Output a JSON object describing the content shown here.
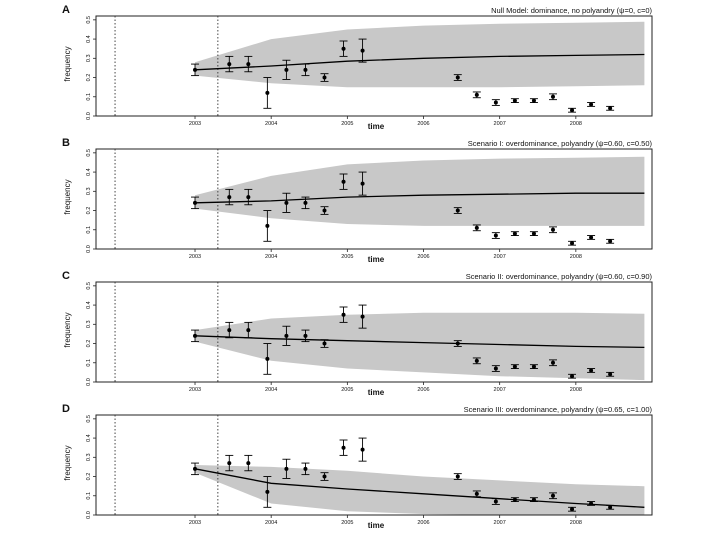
{
  "panels": [
    {
      "letter": "A",
      "title": "Null Model: dominance, no polyandry (ψ=0, c=0)",
      "xlabel": "time",
      "ylabel": "frequency",
      "xticks": [
        "2003",
        "2004",
        "2005",
        "2006",
        "2007",
        "2008"
      ],
      "yticks": [
        "0.0",
        "0.1",
        "0.2",
        "0.3",
        "0.4",
        "0.5"
      ]
    },
    {
      "letter": "B",
      "title": "Scenario I: overdominance, polyandry (ψ=0.60, c=0.50)",
      "xlabel": "time",
      "ylabel": "frequency",
      "xticks": [
        "2003",
        "2004",
        "2005",
        "2006",
        "2007",
        "2008"
      ],
      "yticks": [
        "0.0",
        "0.1",
        "0.2",
        "0.3",
        "0.4",
        "0.5"
      ]
    },
    {
      "letter": "C",
      "title": "Scenario II: overdominance, polyandry (ψ=0.60, c=0.90)",
      "xlabel": "time",
      "ylabel": "frequency",
      "xticks": [
        "2003",
        "2004",
        "2005",
        "2006",
        "2007",
        "2008"
      ],
      "yticks": [
        "0.0",
        "0.1",
        "0.2",
        "0.3",
        "0.4",
        "0.5"
      ]
    },
    {
      "letter": "D",
      "title": "Scenario III: overdominance, polyandry (ψ=0.65, c=1.00)",
      "xlabel": "time",
      "ylabel": "frequency",
      "xticks": [
        "2003",
        "2004",
        "2005",
        "2006",
        "2007",
        "2008"
      ],
      "yticks": [
        "0.0",
        "0.1",
        "0.2",
        "0.3",
        "0.4",
        "0.5"
      ]
    }
  ],
  "chart_data": [
    {
      "type": "line",
      "panel": "A",
      "title": "Null Model: dominance, no polyandry (ψ=0, c=0)",
      "xlabel": "time",
      "ylabel": "frequency",
      "xlim": [
        2001.7,
        2009.0
      ],
      "ylim": [
        0.0,
        0.52
      ],
      "vlines": [
        2001.95,
        2003.3
      ],
      "mean": {
        "x": [
          2003.0,
          2004.0,
          2005.0,
          2006.0,
          2007.0,
          2008.0,
          2008.9
        ],
        "y": [
          0.24,
          0.26,
          0.285,
          0.3,
          0.31,
          0.315,
          0.32
        ]
      },
      "band_upper": [
        0.28,
        0.4,
        0.45,
        0.47,
        0.48,
        0.485,
        0.49
      ],
      "band_lower": [
        0.21,
        0.17,
        0.15,
        0.15,
        0.15,
        0.155,
        0.16
      ],
      "observed": {
        "x": [
          2003.0,
          2003.45,
          2003.7,
          2003.95,
          2004.2,
          2004.45,
          2004.7,
          2004.95,
          2005.2,
          2006.45,
          2006.7,
          2006.95,
          2007.2,
          2007.45,
          2007.7,
          2007.95,
          2008.2,
          2008.45
        ],
        "y": [
          0.24,
          0.27,
          0.27,
          0.12,
          0.24,
          0.24,
          0.2,
          0.35,
          0.34,
          0.2,
          0.11,
          0.07,
          0.08,
          0.08,
          0.1,
          0.03,
          0.06,
          0.04
        ],
        "err": [
          0.03,
          0.04,
          0.04,
          0.08,
          0.05,
          0.03,
          0.02,
          0.04,
          0.06,
          0.015,
          0.015,
          0.015,
          0.01,
          0.01,
          0.015,
          0.01,
          0.01,
          0.01
        ]
      }
    },
    {
      "type": "line",
      "panel": "B",
      "title": "Scenario I: overdominance, polyandry (ψ=0.60, c=0.50)",
      "xlabel": "time",
      "ylabel": "frequency",
      "xlim": [
        2001.7,
        2009.0
      ],
      "ylim": [
        0.0,
        0.52
      ],
      "vlines": [
        2001.95,
        2003.3
      ],
      "mean": {
        "x": [
          2003.0,
          2004.0,
          2005.0,
          2006.0,
          2007.0,
          2008.0,
          2008.9
        ],
        "y": [
          0.24,
          0.25,
          0.27,
          0.28,
          0.285,
          0.29,
          0.29
        ]
      },
      "band_upper": [
        0.28,
        0.38,
        0.44,
        0.46,
        0.47,
        0.475,
        0.48
      ],
      "band_lower": [
        0.21,
        0.16,
        0.13,
        0.12,
        0.12,
        0.12,
        0.12
      ],
      "observed": {
        "x": [
          2003.0,
          2003.45,
          2003.7,
          2003.95,
          2004.2,
          2004.45,
          2004.7,
          2004.95,
          2005.2,
          2006.45,
          2006.7,
          2006.95,
          2007.2,
          2007.45,
          2007.7,
          2007.95,
          2008.2,
          2008.45
        ],
        "y": [
          0.24,
          0.27,
          0.27,
          0.12,
          0.24,
          0.24,
          0.2,
          0.35,
          0.34,
          0.2,
          0.11,
          0.07,
          0.08,
          0.08,
          0.1,
          0.03,
          0.06,
          0.04
        ],
        "err": [
          0.03,
          0.04,
          0.04,
          0.08,
          0.05,
          0.03,
          0.02,
          0.04,
          0.06,
          0.015,
          0.015,
          0.015,
          0.01,
          0.01,
          0.015,
          0.01,
          0.01,
          0.01
        ]
      }
    },
    {
      "type": "line",
      "panel": "C",
      "title": "Scenario II: overdominance, polyandry (ψ=0.60, c=0.90)",
      "xlabel": "time",
      "ylabel": "frequency",
      "xlim": [
        2001.7,
        2009.0
      ],
      "ylim": [
        0.0,
        0.52
      ],
      "vlines": [
        2001.95,
        2003.3
      ],
      "mean": {
        "x": [
          2003.0,
          2004.0,
          2005.0,
          2006.0,
          2007.0,
          2008.0,
          2008.9
        ],
        "y": [
          0.24,
          0.225,
          0.215,
          0.205,
          0.195,
          0.185,
          0.18
        ]
      },
      "band_upper": [
        0.27,
        0.33,
        0.35,
        0.36,
        0.36,
        0.36,
        0.355
      ],
      "band_lower": [
        0.21,
        0.11,
        0.07,
        0.05,
        0.03,
        0.02,
        0.01
      ],
      "observed": {
        "x": [
          2003.0,
          2003.45,
          2003.7,
          2003.95,
          2004.2,
          2004.45,
          2004.7,
          2004.95,
          2005.2,
          2006.45,
          2006.7,
          2006.95,
          2007.2,
          2007.45,
          2007.7,
          2007.95,
          2008.2,
          2008.45
        ],
        "y": [
          0.24,
          0.27,
          0.27,
          0.12,
          0.24,
          0.24,
          0.2,
          0.35,
          0.34,
          0.2,
          0.11,
          0.07,
          0.08,
          0.08,
          0.1,
          0.03,
          0.06,
          0.04
        ],
        "err": [
          0.03,
          0.04,
          0.04,
          0.08,
          0.05,
          0.03,
          0.02,
          0.04,
          0.06,
          0.015,
          0.015,
          0.015,
          0.01,
          0.01,
          0.015,
          0.01,
          0.01,
          0.01
        ]
      }
    },
    {
      "type": "line",
      "panel": "D",
      "title": "Scenario III: overdominance, polyandry (ψ=0.65, c=1.00)",
      "xlabel": "time",
      "ylabel": "frequency",
      "xlim": [
        2001.7,
        2009.0
      ],
      "ylim": [
        0.0,
        0.52
      ],
      "vlines": [
        2001.95,
        2003.3
      ],
      "mean": {
        "x": [
          2003.0,
          2004.0,
          2005.0,
          2006.0,
          2007.0,
          2008.0,
          2008.9
        ],
        "y": [
          0.24,
          0.165,
          0.135,
          0.11,
          0.085,
          0.06,
          0.04
        ]
      },
      "band_upper": [
        0.26,
        0.25,
        0.23,
        0.2,
        0.18,
        0.16,
        0.15
      ],
      "band_lower": [
        0.22,
        0.06,
        0.02,
        0.005,
        0.0,
        0.0,
        0.0
      ],
      "observed": {
        "x": [
          2003.0,
          2003.45,
          2003.7,
          2003.95,
          2004.2,
          2004.45,
          2004.7,
          2004.95,
          2005.2,
          2006.45,
          2006.7,
          2006.95,
          2007.2,
          2007.45,
          2007.7,
          2007.95,
          2008.2,
          2008.45
        ],
        "y": [
          0.24,
          0.27,
          0.27,
          0.12,
          0.24,
          0.24,
          0.2,
          0.35,
          0.34,
          0.2,
          0.11,
          0.07,
          0.08,
          0.08,
          0.1,
          0.03,
          0.06,
          0.04
        ],
        "err": [
          0.03,
          0.04,
          0.04,
          0.08,
          0.05,
          0.03,
          0.02,
          0.04,
          0.06,
          0.015,
          0.015,
          0.015,
          0.01,
          0.01,
          0.015,
          0.01,
          0.01,
          0.01
        ]
      }
    }
  ],
  "colors": {
    "band": "#c8c8c8",
    "line": "#000000",
    "frame": "#222222"
  }
}
